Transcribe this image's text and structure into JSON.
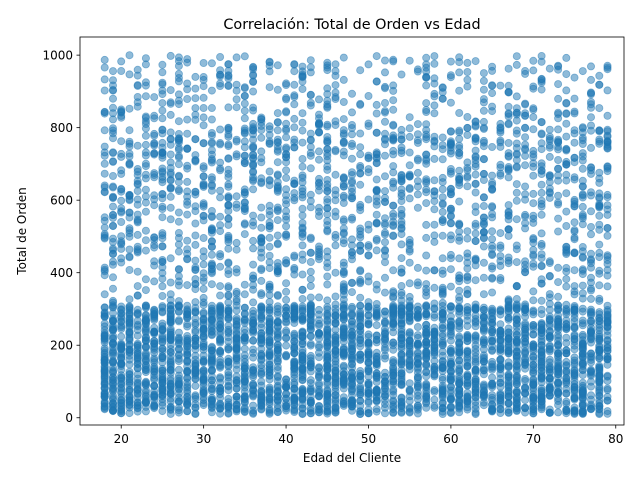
{
  "chart_data": {
    "type": "scatter",
    "title": "Correlación: Total de Orden vs Edad",
    "xlabel": "Edad del Cliente",
    "ylabel": "Total de Orden",
    "xlim": [
      15,
      81
    ],
    "ylim": [
      -20,
      1050
    ],
    "xticks": [
      "20",
      "30",
      "40",
      "50",
      "60",
      "70",
      "80"
    ],
    "yticks": [
      "0",
      "200",
      "400",
      "600",
      "800",
      "1000"
    ],
    "xtick_values": [
      20,
      30,
      40,
      50,
      60,
      70,
      80
    ],
    "ytick_values": [
      0,
      200,
      400,
      600,
      800,
      1000
    ],
    "x_domain_integer_ages": [
      18,
      79
    ],
    "y_value_range": [
      10,
      1000
    ],
    "point_count_estimate": 5000,
    "density_note": "Heavily concentrated between 10 and 600, sparser between 600 and 1000",
    "marker_color": "#1f77b4",
    "marker_alpha": 0.5,
    "grid": false,
    "legend": "none"
  }
}
